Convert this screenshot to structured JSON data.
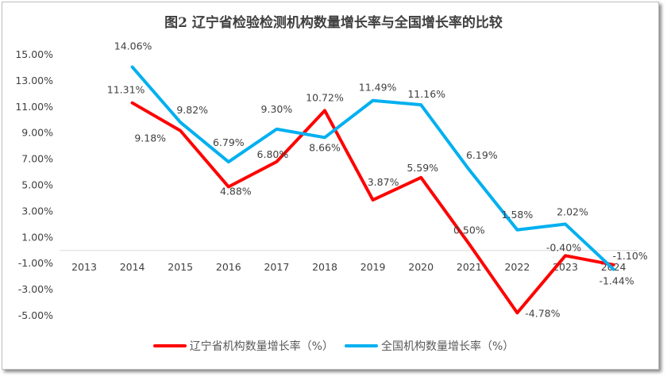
{
  "chart_data": {
    "type": "line",
    "title": "图2 辽宁省检验检测机构数量增长率与全国增长率的比较",
    "categories": [
      "2013",
      "2014",
      "2015",
      "2016",
      "2017",
      "2018",
      "2019",
      "2020",
      "2021",
      "2022",
      "2023",
      "2024"
    ],
    "y_ticks": [
      "15.00%",
      "13.00%",
      "11.00%",
      "9.00%",
      "7.00%",
      "5.00%",
      "3.00%",
      "1.00%",
      "-1.00%",
      "-3.00%",
      "-5.00%"
    ],
    "ylim": [
      -5,
      15
    ],
    "y_unit": "%",
    "grid": false,
    "legend_position": "bottom",
    "series": [
      {
        "name": "辽宁省机构数量增长率（%）",
        "color": "#ff0000",
        "values": [
          null,
          11.31,
          9.18,
          4.88,
          6.8,
          10.72,
          3.87,
          5.59,
          0.5,
          -4.78,
          -0.4,
          -1.1
        ]
      },
      {
        "name": "全国机构数量增长率（%）",
        "color": "#00b0f0",
        "values": [
          null,
          14.06,
          9.82,
          6.79,
          9.3,
          8.66,
          11.49,
          11.16,
          6.19,
          1.58,
          2.02,
          -1.44
        ]
      }
    ]
  }
}
